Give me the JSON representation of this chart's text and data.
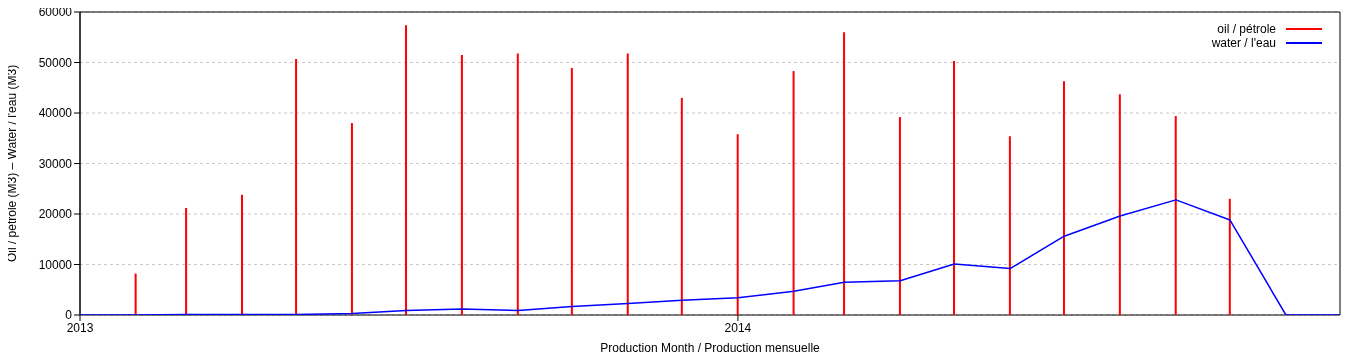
{
  "chart_data": {
    "type": "line",
    "xlabel": "Production Month / Production mensuelle",
    "ylabel": "Oil / pétrole (M3)  –  Water / l'eau (M3)",
    "xlim": [
      "2013-01",
      "2014-12"
    ],
    "xticks": [
      {
        "value": "2013-01",
        "label": "2013"
      },
      {
        "value": "2014-01",
        "label": "2014"
      }
    ],
    "ylim": [
      0,
      60000
    ],
    "yticks": [
      0,
      10000,
      20000,
      30000,
      40000,
      50000,
      60000
    ],
    "grid": "y",
    "legend": "top right",
    "series": [
      {
        "name": "oil / pétrole",
        "type": "bar",
        "color": "#ff0000",
        "x": [
          "2013-02",
          "2013-03",
          "2013-04",
          "2013-05",
          "2013-06",
          "2013-07",
          "2013-08",
          "2013-09",
          "2013-10",
          "2013-11",
          "2013-12",
          "2014-01",
          "2014-02",
          "2014-03",
          "2014-04",
          "2014-05",
          "2014-06",
          "2014-07",
          "2014-08",
          "2014-09",
          "2014-10"
        ],
        "values": [
          8200,
          21200,
          23800,
          50700,
          38000,
          57400,
          51500,
          51800,
          48900,
          51800,
          43000,
          35800,
          48300,
          56000,
          39200,
          50300,
          35400,
          46300,
          43700,
          39400,
          23000
        ]
      },
      {
        "name": "water / l'eau",
        "color": "#0000ff",
        "x": [
          "2013-01",
          "2013-02",
          "2013-03",
          "2013-04",
          "2013-05",
          "2013-06",
          "2013-07",
          "2013-08",
          "2013-09",
          "2013-10",
          "2013-11",
          "2013-12",
          "2014-01",
          "2014-02",
          "2014-03",
          "2014-04",
          "2014-05",
          "2014-06",
          "2014-07",
          "2014-08",
          "2014-09",
          "2014-10",
          "2014-11",
          "2014-12"
        ],
        "values": [
          0,
          0,
          100,
          100,
          100,
          300,
          900,
          1200,
          900,
          1700,
          2300,
          2900,
          3400,
          4700,
          6500,
          6800,
          10100,
          9200,
          15600,
          19600,
          22800,
          18800,
          0,
          0
        ]
      }
    ]
  }
}
